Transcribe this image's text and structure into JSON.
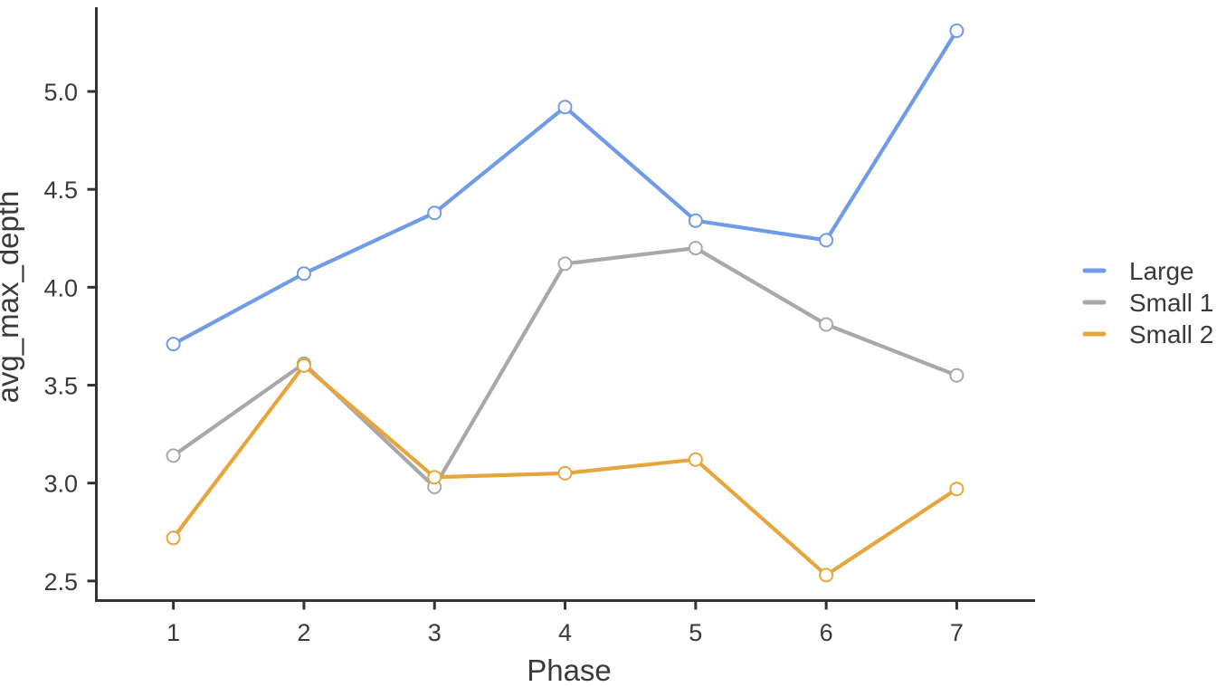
{
  "figure": {
    "background": "#ffffff",
    "axis_color": "#333333",
    "text_color": "#3a3a3a"
  },
  "chart_data": {
    "type": "line",
    "title": "",
    "xlabel": "Phase",
    "ylabel": "avg_max_depth",
    "x": [
      1,
      2,
      3,
      4,
      5,
      6,
      7
    ],
    "x_tick_labels": [
      "1",
      "2",
      "3",
      "4",
      "5",
      "6",
      "7"
    ],
    "y_ticks": [
      2.5,
      3.0,
      3.5,
      4.0,
      4.5,
      5.0
    ],
    "y_tick_labels": [
      "2.5",
      "3.0",
      "3.5",
      "4.0",
      "4.5",
      "5.0"
    ],
    "xlim": [
      0.41,
      7.6
    ],
    "ylim": [
      2.4,
      5.43
    ],
    "grid": false,
    "legend_position": "right",
    "marker": "open-circle",
    "draw_order": [
      1,
      2,
      0
    ],
    "series": [
      {
        "name": "Large",
        "color": "#6f9be8",
        "values": [
          3.71,
          4.07,
          4.38,
          4.92,
          4.34,
          4.24,
          5.31
        ]
      },
      {
        "name": "Small 1",
        "color": "#a8a8a8",
        "values": [
          3.14,
          3.61,
          2.98,
          4.12,
          4.2,
          3.81,
          3.55
        ]
      },
      {
        "name": "Small 2",
        "color": "#e5a63c",
        "values": [
          2.72,
          3.6,
          3.03,
          3.05,
          3.12,
          2.53,
          2.97
        ]
      }
    ]
  }
}
